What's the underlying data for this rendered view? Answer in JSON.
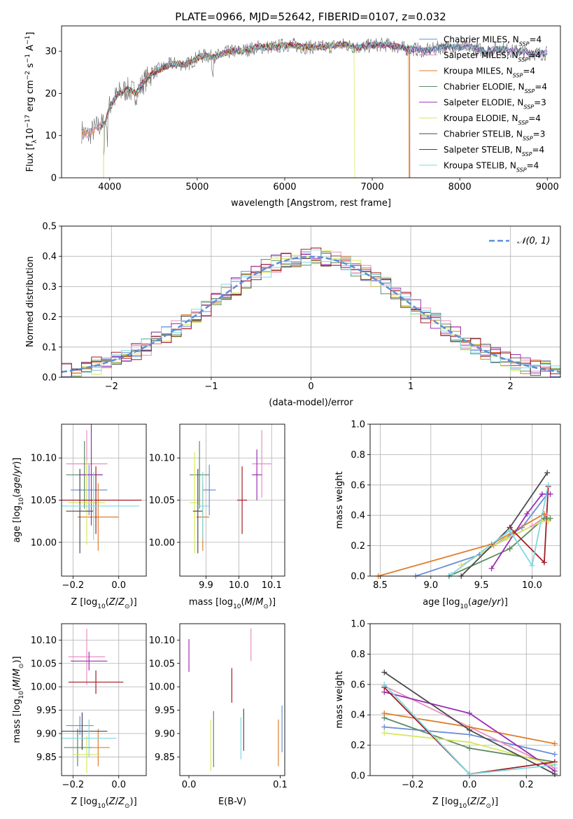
{
  "figure_title": "PLATE=0966, MJD=52642, FIBERID=0107, z=0.032",
  "colors": {
    "chabrier_miles": "#6a8fd6",
    "salpeter_miles": "#e98fbf",
    "kroupa_miles": "#df7e2b",
    "chabrier_elodie": "#5b8a63",
    "salpeter_elodie": "#9b2fb4",
    "kroupa_elodie": "#d8e85b",
    "chabrier_stelib": "#4a4a4a",
    "salpeter_stelib": "#a31c24",
    "kroupa_stelib": "#7fd8e0",
    "normal_curve": "#5b8ed6",
    "grid": "#b0b0b0"
  },
  "chart_data": [
    {
      "id": "spectrum",
      "type": "line",
      "xlabel": "wavelength [Angstrom, rest frame]",
      "ylabel_parts": [
        "Flux [f",
        "λ",
        "10",
        "−17",
        " erg cm",
        "−2",
        " s",
        "−1",
        " A",
        "−1",
        "]"
      ],
      "xlim": [
        3450,
        9150
      ],
      "ylim": [
        0,
        36
      ],
      "xticks": [
        4000,
        5000,
        6000,
        7000,
        8000,
        9000
      ],
      "yticks": [
        0,
        10,
        20,
        30
      ],
      "grid": false,
      "legend_position": "right",
      "legend": [
        {
          "key": "chabrier_miles",
          "label": "Chabrier MILES, N",
          "sub": "SSP",
          "tail": "=4"
        },
        {
          "key": "salpeter_miles",
          "label": "Salpeter MILES, N",
          "sub": "SSP",
          "tail": "=4"
        },
        {
          "key": "kroupa_miles",
          "label": "Kroupa MILES, N",
          "sub": "SSP",
          "tail": "=4"
        },
        {
          "key": "chabrier_elodie",
          "label": "Chabrier ELODIE, N",
          "sub": "SSP",
          "tail": "=4"
        },
        {
          "key": "salpeter_elodie",
          "label": "Salpeter ELODIE, N",
          "sub": "SSP",
          "tail": "=3"
        },
        {
          "key": "kroupa_elodie",
          "label": "Kroupa ELODIE, N",
          "sub": "SSP",
          "tail": "=4"
        },
        {
          "key": "chabrier_stelib",
          "label": "Chabrier STELIB, N",
          "sub": "SSP",
          "tail": "=3"
        },
        {
          "key": "salpeter_stelib",
          "label": "Salpeter STELIB, N",
          "sub": "SSP",
          "tail": "=4"
        },
        {
          "key": "kroupa_stelib",
          "label": "Kroupa STELIB, N",
          "sub": "SSP",
          "tail": "=4"
        }
      ],
      "data_continuum": [
        [
          3680,
          11
        ],
        [
          3750,
          10
        ],
        [
          3850,
          12
        ],
        [
          3950,
          13
        ],
        [
          4000,
          17
        ],
        [
          4100,
          20
        ],
        [
          4200,
          21
        ],
        [
          4300,
          20
        ],
        [
          4400,
          23
        ],
        [
          4500,
          25
        ],
        [
          4600,
          26
        ],
        [
          4700,
          27
        ],
        [
          4800,
          27
        ],
        [
          4900,
          27
        ],
        [
          5000,
          28.5
        ],
        [
          5100,
          29
        ],
        [
          5200,
          28.5
        ],
        [
          5300,
          29.5
        ],
        [
          5400,
          30
        ],
        [
          5500,
          30
        ],
        [
          5600,
          30.5
        ],
        [
          5700,
          31
        ],
        [
          5800,
          31
        ],
        [
          5900,
          31
        ],
        [
          6000,
          31.5
        ],
        [
          6100,
          31.5
        ],
        [
          6200,
          31
        ],
        [
          6300,
          31
        ],
        [
          6400,
          31
        ],
        [
          6500,
          31
        ],
        [
          6600,
          31.5
        ],
        [
          6700,
          31.5
        ],
        [
          6800,
          31
        ],
        [
          6900,
          31
        ],
        [
          7000,
          31.5
        ],
        [
          7100,
          31.5
        ],
        [
          7200,
          31.5
        ],
        [
          7300,
          31
        ],
        [
          7400,
          30.5
        ],
        [
          7500,
          30.5
        ],
        [
          7600,
          30
        ],
        [
          7700,
          30.5
        ],
        [
          7800,
          31
        ],
        [
          7900,
          31
        ],
        [
          8000,
          31
        ],
        [
          8100,
          31
        ],
        [
          8200,
          30.5
        ],
        [
          8300,
          30
        ],
        [
          8400,
          30.5
        ],
        [
          8500,
          30.5
        ],
        [
          8600,
          30
        ],
        [
          8700,
          30
        ],
        [
          8800,
          29.5
        ],
        [
          8900,
          29.5
        ],
        [
          9000,
          29.5
        ]
      ],
      "model_cutoffs": [
        {
          "key": "kroupa_elodie",
          "x": 6800
        },
        {
          "key": "kroupa_miles",
          "x": 7420
        },
        {
          "key": "salpeter_stelib",
          "x": 7430
        }
      ]
    },
    {
      "id": "residuals",
      "type": "histogram",
      "xlabel": "(data-model)/error",
      "ylabel": "Normed distribution",
      "xlim": [
        -2.5,
        2.5
      ],
      "ylim": [
        0,
        0.5
      ],
      "xticks": [
        -2,
        -1,
        0,
        1,
        2
      ],
      "yticks": [
        0.0,
        0.1,
        0.2,
        0.3,
        0.4,
        0.5
      ],
      "grid": true,
      "legend_position": "top-right",
      "legend": [
        {
          "key": "normal_curve",
          "label": "𝒩(0, 1)"
        }
      ],
      "bin_width": 0.1
    },
    {
      "id": "age_vs_Z",
      "type": "scatter",
      "xlabel": "Z [log10(Z/Z☉)]",
      "ylabel": "age  [log10(age/yr)]",
      "xlim": [
        -0.25,
        0.12
      ],
      "ylim": [
        9.96,
        10.14
      ],
      "xticks": [
        -0.2,
        0.0
      ],
      "yticks": [
        10.0,
        10.05,
        10.1
      ],
      "grid": true,
      "points": [
        {
          "key": "chabrier_miles",
          "x": -0.13,
          "y": 10.062,
          "xerr": 0.08,
          "yerr": 0.03
        },
        {
          "key": "salpeter_miles",
          "x": -0.14,
          "y": 10.093,
          "xerr": 0.09,
          "yerr": 0.04
        },
        {
          "key": "kroupa_miles",
          "x": -0.09,
          "y": 10.03,
          "xerr": 0.09,
          "yerr": 0.04
        },
        {
          "key": "chabrier_elodie",
          "x": -0.15,
          "y": 10.08,
          "xerr": 0.08,
          "yerr": 0.04
        },
        {
          "key": "salpeter_elodie",
          "x": -0.12,
          "y": 10.08,
          "xerr": 0.05,
          "yerr": 0.06
        },
        {
          "key": "kroupa_elodie",
          "x": -0.14,
          "y": 10.047,
          "xerr": 0.08,
          "yerr": 0.05
        },
        {
          "key": "chabrier_stelib",
          "x": -0.17,
          "y": 10.037,
          "xerr": 0.06,
          "yerr": 0.05
        },
        {
          "key": "salpeter_stelib",
          "x": -0.1,
          "y": 10.05,
          "xerr": 0.2,
          "yerr": 0.04
        },
        {
          "key": "kroupa_stelib",
          "x": -0.11,
          "y": 10.043,
          "xerr": 0.2,
          "yerr": 0.04
        }
      ]
    },
    {
      "id": "age_vs_mass",
      "type": "scatter",
      "xlabel": "mass [log10(M/M☉)]",
      "ylabel": "",
      "xlim": [
        9.82,
        10.14
      ],
      "ylim": [
        9.96,
        10.14
      ],
      "xticks": [
        9.9,
        10.0,
        10.1
      ],
      "yticks": [
        10.0,
        10.05,
        10.1
      ],
      "grid": true,
      "points": [
        {
          "key": "chabrier_miles",
          "x": 9.91,
          "y": 10.062,
          "xerr": 0.02,
          "yerr": 0.03
        },
        {
          "key": "salpeter_miles",
          "x": 10.07,
          "y": 10.093,
          "xerr": 0.03,
          "yerr": 0.04
        },
        {
          "key": "kroupa_miles",
          "x": 9.89,
          "y": 10.03,
          "xerr": 0.02,
          "yerr": 0.04
        },
        {
          "key": "chabrier_elodie",
          "x": 9.88,
          "y": 10.08,
          "xerr": 0.03,
          "yerr": 0.04
        },
        {
          "key": "salpeter_elodie",
          "x": 10.055,
          "y": 10.08,
          "xerr": 0.015,
          "yerr": 0.03
        },
        {
          "key": "kroupa_elodie",
          "x": 9.865,
          "y": 10.047,
          "xerr": 0.015,
          "yerr": 0.06
        },
        {
          "key": "chabrier_stelib",
          "x": 9.875,
          "y": 10.037,
          "xerr": 0.015,
          "yerr": 0.05
        },
        {
          "key": "salpeter_stelib",
          "x": 10.01,
          "y": 10.05,
          "xerr": 0.015,
          "yerr": 0.04
        },
        {
          "key": "kroupa_stelib",
          "x": 9.89,
          "y": 10.043,
          "xerr": 0.02,
          "yerr": 0.04
        }
      ]
    },
    {
      "id": "massweight_vs_age",
      "type": "line",
      "xlabel": "age  [log10(age/yr)]",
      "ylabel": "mass weight",
      "xlim": [
        8.4,
        10.28
      ],
      "ylim": [
        0,
        1
      ],
      "xticks": [
        8.5,
        9.0,
        9.5,
        10.0
      ],
      "yticks": [
        0.0,
        0.2,
        0.4,
        0.6,
        0.8,
        1.0
      ],
      "grid": true,
      "series": [
        {
          "key": "chabrier_miles",
          "x": [
            8.85,
            9.48,
            9.9,
            10.15
          ],
          "y": [
            0.0,
            0.14,
            0.32,
            0.54
          ]
        },
        {
          "key": "salpeter_miles",
          "x": [
            9.3,
            9.62,
            10.0,
            10.15
          ],
          "y": [
            0.07,
            0.2,
            0.33,
            0.4
          ]
        },
        {
          "key": "kroupa_miles",
          "x": [
            8.48,
            9.6,
            10.12,
            10.16
          ],
          "y": [
            0.0,
            0.21,
            0.41,
            0.37
          ]
        },
        {
          "key": "chabrier_elodie",
          "x": [
            9.18,
            9.78,
            10.12,
            10.18
          ],
          "y": [
            0.0,
            0.18,
            0.38,
            0.38
          ]
        },
        {
          "key": "salpeter_elodie",
          "x": [
            9.6,
            9.95,
            10.1,
            10.18
          ],
          "y": [
            0.05,
            0.41,
            0.54,
            0.54
          ]
        },
        {
          "key": "kroupa_elodie",
          "x": [
            9.3,
            9.75,
            10.1,
            10.16
          ],
          "y": [
            0.07,
            0.25,
            0.36,
            0.36
          ]
        },
        {
          "key": "chabrier_stelib",
          "x": [
            9.3,
            9.78,
            10.15
          ],
          "y": [
            0.0,
            0.32,
            0.68
          ]
        },
        {
          "key": "salpeter_stelib",
          "x": [
            9.78,
            10.12,
            10.16
          ],
          "y": [
            0.32,
            0.09,
            0.59
          ]
        },
        {
          "key": "kroupa_stelib",
          "x": [
            9.2,
            9.78,
            10.0,
            10.16
          ],
          "y": [
            0.01,
            0.3,
            0.07,
            0.6
          ]
        }
      ]
    },
    {
      "id": "mass_vs_Z",
      "type": "scatter",
      "xlabel": "Z [log10(Z/Z☉)]",
      "ylabel": "mass [log10(M/M☉)]",
      "xlim": [
        -0.25,
        0.12
      ],
      "ylim": [
        9.81,
        10.135
      ],
      "xticks": [
        -0.2,
        0.0
      ],
      "yticks": [
        9.85,
        9.9,
        9.95,
        10.0,
        10.05,
        10.1
      ],
      "grid": true,
      "points": [
        {
          "key": "chabrier_miles",
          "x": -0.17,
          "y": 9.917,
          "xerr": 0.06,
          "yerr": 0.02
        },
        {
          "key": "salpeter_miles",
          "x": -0.14,
          "y": 10.064,
          "xerr": 0.08,
          "yerr": 0.06
        },
        {
          "key": "kroupa_miles",
          "x": -0.09,
          "y": 9.87,
          "xerr": 0.05,
          "yerr": 0.04
        },
        {
          "key": "chabrier_elodie",
          "x": -0.18,
          "y": 9.87,
          "xerr": 0.06,
          "yerr": 0.04
        },
        {
          "key": "salpeter_elodie",
          "x": -0.13,
          "y": 10.055,
          "xerr": 0.08,
          "yerr": 0.02
        },
        {
          "key": "kroupa_elodie",
          "x": -0.14,
          "y": 9.855,
          "xerr": 0.06,
          "yerr": 0.04
        },
        {
          "key": "chabrier_stelib",
          "x": -0.16,
          "y": 9.905,
          "xerr": 0.11,
          "yerr": 0.04
        },
        {
          "key": "salpeter_stelib",
          "x": -0.1,
          "y": 10.01,
          "xerr": 0.12,
          "yerr": 0.025
        },
        {
          "key": "kroupa_stelib",
          "x": -0.13,
          "y": 9.89,
          "xerr": 0.12,
          "yerr": 0.04
        }
      ]
    },
    {
      "id": "mass_vs_ebv",
      "type": "scatter",
      "xlabel": "E(B-V)",
      "ylabel": "",
      "xlim": [
        -0.01,
        0.105
      ],
      "ylim": [
        9.81,
        10.135
      ],
      "xticks": [
        0.0,
        0.1
      ],
      "yticks": [
        9.85,
        9.9,
        9.95,
        10.0,
        10.05,
        10.1
      ],
      "grid": false,
      "points": [
        {
          "key": "salpeter_elodie",
          "x": 0.0,
          "y": 10.067,
          "yerr": 0.035
        },
        {
          "key": "salpeter_miles",
          "x": 0.068,
          "y": 10.09,
          "yerr": 0.035
        },
        {
          "key": "salpeter_stelib",
          "x": 0.047,
          "y": 10.003,
          "yerr": 0.037
        },
        {
          "key": "chabrier_elodie",
          "x": 0.027,
          "y": 9.888,
          "yerr": 0.06
        },
        {
          "key": "kroupa_elodie",
          "x": 0.024,
          "y": 9.875,
          "yerr": 0.055
        },
        {
          "key": "kroupa_stelib",
          "x": 0.057,
          "y": 9.89,
          "yerr": 0.045
        },
        {
          "key": "chabrier_stelib",
          "x": 0.06,
          "y": 9.908,
          "yerr": 0.045
        },
        {
          "key": "kroupa_miles",
          "x": 0.098,
          "y": 9.88,
          "yerr": 0.05
        },
        {
          "key": "chabrier_miles",
          "x": 0.102,
          "y": 9.91,
          "yerr": 0.05
        }
      ]
    },
    {
      "id": "massweight_vs_Z",
      "type": "line",
      "xlabel": "Z [log10(Z/Z☉)]",
      "ylabel": "mass weight",
      "xlim": [
        -0.35,
        0.32
      ],
      "ylim": [
        0,
        1
      ],
      "xticks": [
        -0.2,
        0.0,
        0.2
      ],
      "yticks": [
        0.0,
        0.2,
        0.4,
        0.6,
        0.8,
        1.0
      ],
      "grid": true,
      "series": [
        {
          "key": "chabrier_miles",
          "x": [
            -0.3,
            0.0,
            0.3
          ],
          "y": [
            0.32,
            0.27,
            0.14
          ]
        },
        {
          "key": "salpeter_miles",
          "x": [
            -0.3,
            0.0,
            0.3
          ],
          "y": [
            0.59,
            0.32,
            0.05
          ]
        },
        {
          "key": "kroupa_miles",
          "x": [
            -0.3,
            0.0,
            0.3
          ],
          "y": [
            0.41,
            0.32,
            0.21
          ]
        },
        {
          "key": "chabrier_elodie",
          "x": [
            -0.3,
            0.0,
            0.3
          ],
          "y": [
            0.38,
            0.18,
            0.09
          ]
        },
        {
          "key": "salpeter_elodie",
          "x": [
            -0.3,
            0.0,
            0.3
          ],
          "y": [
            0.55,
            0.41,
            0.03
          ]
        },
        {
          "key": "kroupa_elodie",
          "x": [
            -0.3,
            0.0,
            0.3
          ],
          "y": [
            0.28,
            0.22,
            0.07
          ]
        },
        {
          "key": "chabrier_stelib",
          "x": [
            -0.3,
            0.0,
            0.3
          ],
          "y": [
            0.68,
            0.3,
            0.01
          ]
        },
        {
          "key": "salpeter_stelib",
          "x": [
            -0.3,
            0.0,
            0.3
          ],
          "y": [
            0.58,
            0.01,
            0.09
          ]
        },
        {
          "key": "kroupa_stelib",
          "x": [
            -0.3,
            0.0,
            0.3
          ],
          "y": [
            0.6,
            0.01,
            0.07
          ]
        }
      ]
    }
  ]
}
